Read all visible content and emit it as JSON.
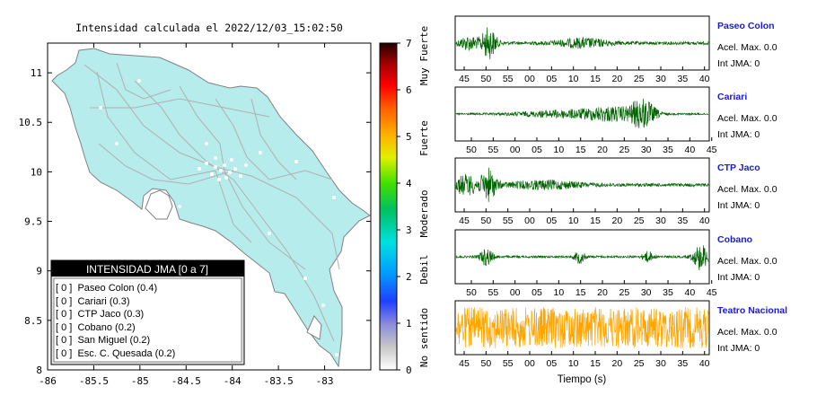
{
  "map": {
    "title": "Intensidad calculada el 2022/12/03_15:02:50",
    "x_ticks": [
      "-86",
      "-85.5",
      "-85",
      "-84.5",
      "-84",
      "-83.5",
      "-83"
    ],
    "y_ticks": [
      "11",
      "10.5",
      "10",
      "9.5",
      "9",
      "8.5",
      "8"
    ],
    "xlim": [
      -86,
      -82.5
    ],
    "ylim": [
      8,
      11.3
    ],
    "colors": {
      "land": "#b6ecec",
      "border": "#808080",
      "roads": "#b0b0b0"
    }
  },
  "legend": {
    "header": "INTENSIDAD JMA [0 a 7]",
    "items": [
      "[ 0 ]  Paseo Colon (0.4)",
      "[ 0 ]  Cariari (0.3)",
      "[ 0 ]  CTP Jaco (0.3)",
      "[ 0 ]  Cobano (0.2)",
      "[ 0 ]  San Miguel (0.2)",
      "[ 0 ]  Esc. C. Quesada (0.2)"
    ]
  },
  "colorbar": {
    "ticks": [
      "7",
      "6",
      "5",
      "4",
      "3",
      "2",
      "1",
      "0"
    ],
    "labels": [
      "Muy Fuerte",
      "Fuerte",
      "Moderado",
      "Debil",
      "No sentido"
    ]
  },
  "stations": [
    {
      "name": "Paseo Colon",
      "accel": "Acel. Max. 0.0",
      "jma": "Int JMA: 0",
      "color": "#006400",
      "ticks": [
        "45",
        "50",
        "55",
        "00",
        "05",
        "10",
        "15",
        "20",
        "25",
        "30",
        "35",
        "40"
      ],
      "first_tick": 45
    },
    {
      "name": "Cariari",
      "accel": "Acel. Max. 0.0",
      "jma": "Int JMA: 0",
      "color": "#006400",
      "ticks": [
        "50",
        "55",
        "00",
        "05",
        "10",
        "15",
        "20",
        "25",
        "30",
        "35",
        "40",
        "45"
      ],
      "first_tick": 50
    },
    {
      "name": "CTP Jaco",
      "accel": "Acel. Max. 0.0",
      "jma": "Int JMA: 0",
      "color": "#006400",
      "ticks": [
        "45",
        "50",
        "55",
        "00",
        "05",
        "10",
        "15",
        "20",
        "25",
        "30",
        "35",
        "40"
      ],
      "first_tick": 45
    },
    {
      "name": "Cobano",
      "accel": "Acel. Max. 0.0",
      "jma": "Int JMA: 0",
      "color": "#006400",
      "ticks": [
        "50",
        "55",
        "00",
        "05",
        "10",
        "15",
        "20",
        "25",
        "30",
        "35",
        "40",
        "45"
      ],
      "first_tick": 50
    },
    {
      "name": "Teatro Nacional",
      "accel": "Acel. Max. 0.0",
      "jma": "Int JMA: 0",
      "color": "#ffa500",
      "ticks": [
        "45",
        "50",
        "55",
        "00",
        "05",
        "10",
        "15",
        "20",
        "25",
        "30",
        "35",
        "40"
      ],
      "first_tick": 45
    }
  ],
  "time_axis_label": "Tiempo (s)",
  "chart_data": {
    "type": "line",
    "title": "Intensidad calculada el 2022/12/03_15:02:50",
    "xlabel": "Tiempo (s)",
    "ylabel": "",
    "series": [
      {
        "name": "Paseo Colon",
        "peak_acceleration": 0.0,
        "jma_intensity": 0,
        "calculated_intensity": 0.4
      },
      {
        "name": "Cariari",
        "peak_acceleration": 0.0,
        "jma_intensity": 0,
        "calculated_intensity": 0.3
      },
      {
        "name": "CTP Jaco",
        "peak_acceleration": 0.0,
        "jma_intensity": 0,
        "calculated_intensity": 0.3
      },
      {
        "name": "Cobano",
        "peak_acceleration": 0.0,
        "jma_intensity": 0,
        "calculated_intensity": 0.2
      },
      {
        "name": "San Miguel",
        "jma_intensity": 0,
        "calculated_intensity": 0.2
      },
      {
        "name": "Esc. C. Quesada",
        "jma_intensity": 0,
        "calculated_intensity": 0.2
      }
    ],
    "colorbar_range": [
      0,
      7
    ]
  }
}
